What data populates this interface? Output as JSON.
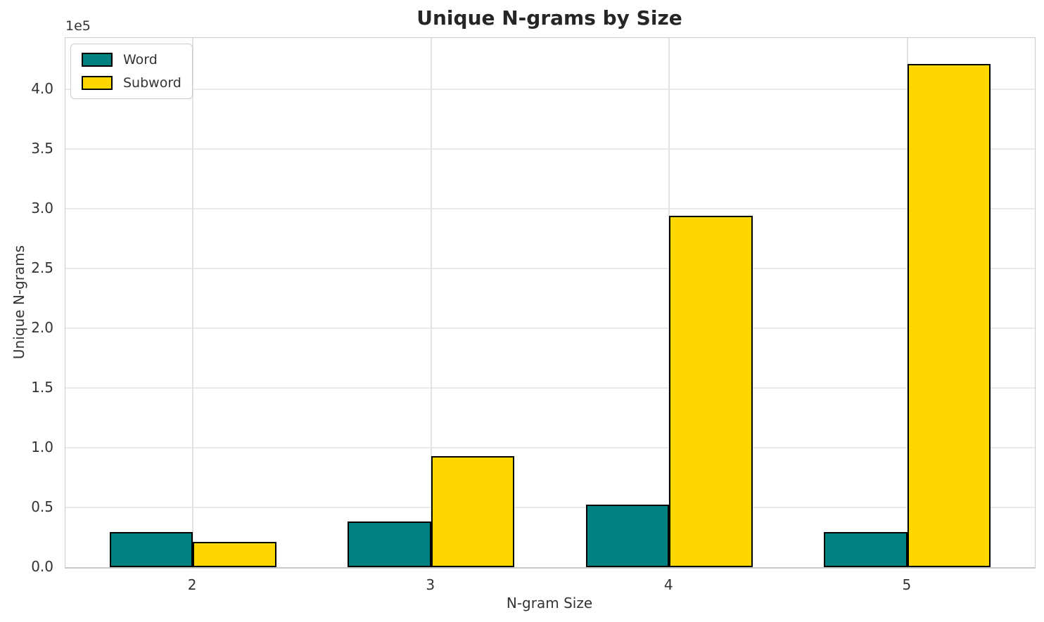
{
  "chart_data": {
    "type": "bar",
    "title": "Unique N-grams by Size",
    "xlabel": "N-gram Size",
    "ylabel": "Unique N-grams",
    "offset_label": "1e5",
    "categories": [
      "2",
      "3",
      "4",
      "5"
    ],
    "series": [
      {
        "name": "Word",
        "color": "#008080",
        "edge_color": "#000000",
        "values": [
          29500,
          38500,
          52500,
          29500
        ]
      },
      {
        "name": "Subword",
        "color": "#FFD700",
        "edge_color": "#000000",
        "values": [
          21000,
          93000,
          294000,
          421500
        ]
      }
    ],
    "ylim": [
      0,
      443000
    ],
    "y_ticks": [
      {
        "label": "0.0",
        "value": 0
      },
      {
        "label": "0.5",
        "value": 50000
      },
      {
        "label": "1.0",
        "value": 100000
      },
      {
        "label": "1.5",
        "value": 150000
      },
      {
        "label": "2.0",
        "value": 200000
      },
      {
        "label": "2.5",
        "value": 250000
      },
      {
        "label": "3.0",
        "value": 300000
      },
      {
        "label": "3.5",
        "value": 350000
      },
      {
        "label": "4.0",
        "value": 400000
      }
    ],
    "grid": true,
    "legend_position": "upper left",
    "bar_width_data_units": 0.35
  }
}
